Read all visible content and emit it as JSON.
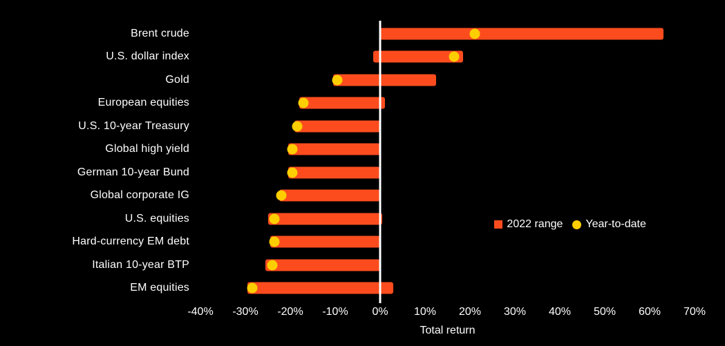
{
  "chart_data": {
    "type": "bar",
    "orientation": "horizontal",
    "title": "",
    "xlabel": "Total return",
    "xlim": [
      -40,
      70
    ],
    "xticks": [
      -40,
      -30,
      -20,
      -10,
      0,
      10,
      20,
      30,
      40,
      50,
      60,
      70
    ],
    "tick_suffix": "%",
    "grid": false,
    "legend_position": "middle-right",
    "legend": [
      {
        "label": "2022 range",
        "marker": "square",
        "color": "#FC4C1E"
      },
      {
        "label": "Year-to-date",
        "marker": "circle",
        "color": "#FFCE00"
      }
    ],
    "colors": {
      "range_bar": "#FC4C1E",
      "ytd_marker": "#FFCE00",
      "baseline": "#FFFFFF",
      "background": "#000000",
      "text": "#FFFFFF"
    },
    "rows": [
      {
        "label": "Brent crude",
        "range": [
          0,
          63
        ],
        "ytd": 21
      },
      {
        "label": "U.S. dollar index",
        "range": [
          -1.5,
          18.5
        ],
        "ytd": 16.5
      },
      {
        "label": "Gold",
        "range": [
          -10.5,
          12.5
        ],
        "ytd": -9.5
      },
      {
        "label": "European equities",
        "range": [
          -18,
          1
        ],
        "ytd": -17
      },
      {
        "label": "U.S. 10-year Treasury",
        "range": [
          -19,
          0
        ],
        "ytd": -18.5
      },
      {
        "label": "Global high yield",
        "range": [
          -20.5,
          0
        ],
        "ytd": -19.5
      },
      {
        "label": "German 10-year Bund",
        "range": [
          -20.5,
          0
        ],
        "ytd": -19.5
      },
      {
        "label": "Global corporate IG",
        "range": [
          -22.5,
          0
        ],
        "ytd": -22
      },
      {
        "label": "U.S. equities",
        "range": [
          -25,
          0.5
        ],
        "ytd": -23.5
      },
      {
        "label": "Hard-currency EM debt",
        "range": [
          -24.5,
          0
        ],
        "ytd": -23.5
      },
      {
        "label": "Italian 10-year BTP",
        "range": [
          -25.5,
          0
        ],
        "ytd": -24
      },
      {
        "label": "EM equities",
        "range": [
          -29.5,
          3
        ],
        "ytd": -28.5
      }
    ]
  }
}
